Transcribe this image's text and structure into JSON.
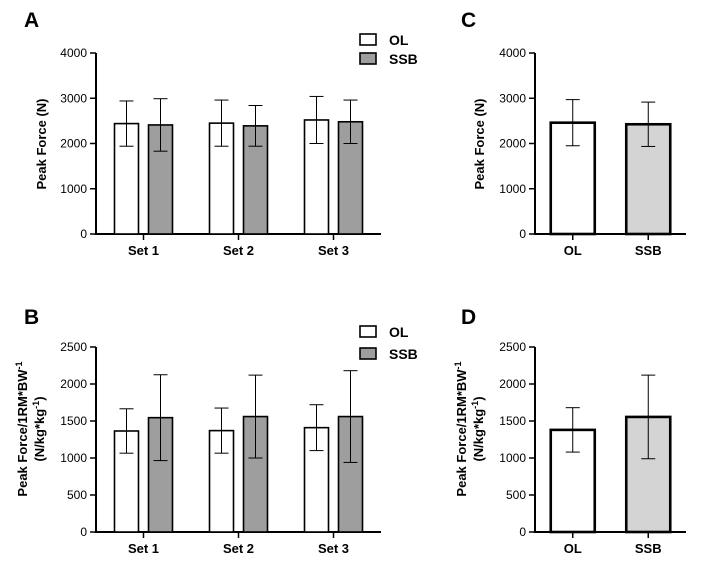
{
  "colors": {
    "ol": "#ffffff",
    "ssb_grouped": "#9e9e9e",
    "ssb_single": "#d4d4d4",
    "stroke": "#000000"
  },
  "chart_data": [
    {
      "panel": "A",
      "type": "bar",
      "ylabel": "Peak Force (N)",
      "ylim": [
        0,
        4000
      ],
      "yticks": [
        0,
        1000,
        2000,
        3000,
        4000
      ],
      "categories": [
        "Set 1",
        "Set 2",
        "Set 3"
      ],
      "legend": [
        "OL",
        "SSB"
      ],
      "series": [
        {
          "name": "OL",
          "values": [
            2440,
            2450,
            2520
          ],
          "errors": [
            500,
            510,
            520
          ]
        },
        {
          "name": "SSB",
          "values": [
            2410,
            2390,
            2480
          ],
          "errors": [
            580,
            450,
            480
          ]
        }
      ]
    },
    {
      "panel": "B",
      "type": "bar",
      "ylabel_line1": "Peak Force/1RM*BW",
      "ylabel_sup1": "-1",
      "ylabel_line2_pre": "(N/kg*kg",
      "ylabel_sup2": "-1",
      "ylabel_line2_post": ")",
      "ylim": [
        0,
        2500
      ],
      "yticks": [
        0,
        500,
        1000,
        1500,
        2000,
        2500
      ],
      "categories": [
        "Set 1",
        "Set 2",
        "Set 3"
      ],
      "legend": [
        "OL",
        "SSB"
      ],
      "series": [
        {
          "name": "OL",
          "values": [
            1365,
            1370,
            1410
          ],
          "errors": [
            300,
            305,
            310
          ]
        },
        {
          "name": "SSB",
          "values": [
            1545,
            1560,
            1560
          ],
          "errors": [
            580,
            560,
            620
          ]
        }
      ]
    },
    {
      "panel": "C",
      "type": "bar",
      "ylabel": "Peak Force (N)",
      "ylim": [
        0,
        4000
      ],
      "yticks": [
        0,
        1000,
        2000,
        3000,
        4000
      ],
      "categories": [
        "OL",
        "SSB"
      ],
      "values": [
        2460,
        2425
      ],
      "errors": [
        510,
        490
      ]
    },
    {
      "panel": "D",
      "type": "bar",
      "ylabel_line1": "Peak Force/1RM*BW",
      "ylabel_sup1": "-1",
      "ylabel_line2_pre": "(N/kg*kg",
      "ylabel_sup2": "-1",
      "ylabel_line2_post": ")",
      "ylim": [
        0,
        2500
      ],
      "yticks": [
        0,
        500,
        1000,
        1500,
        2000,
        2500
      ],
      "categories": [
        "OL",
        "SSB"
      ],
      "values": [
        1380,
        1555
      ],
      "errors": [
        300,
        565
      ]
    }
  ]
}
